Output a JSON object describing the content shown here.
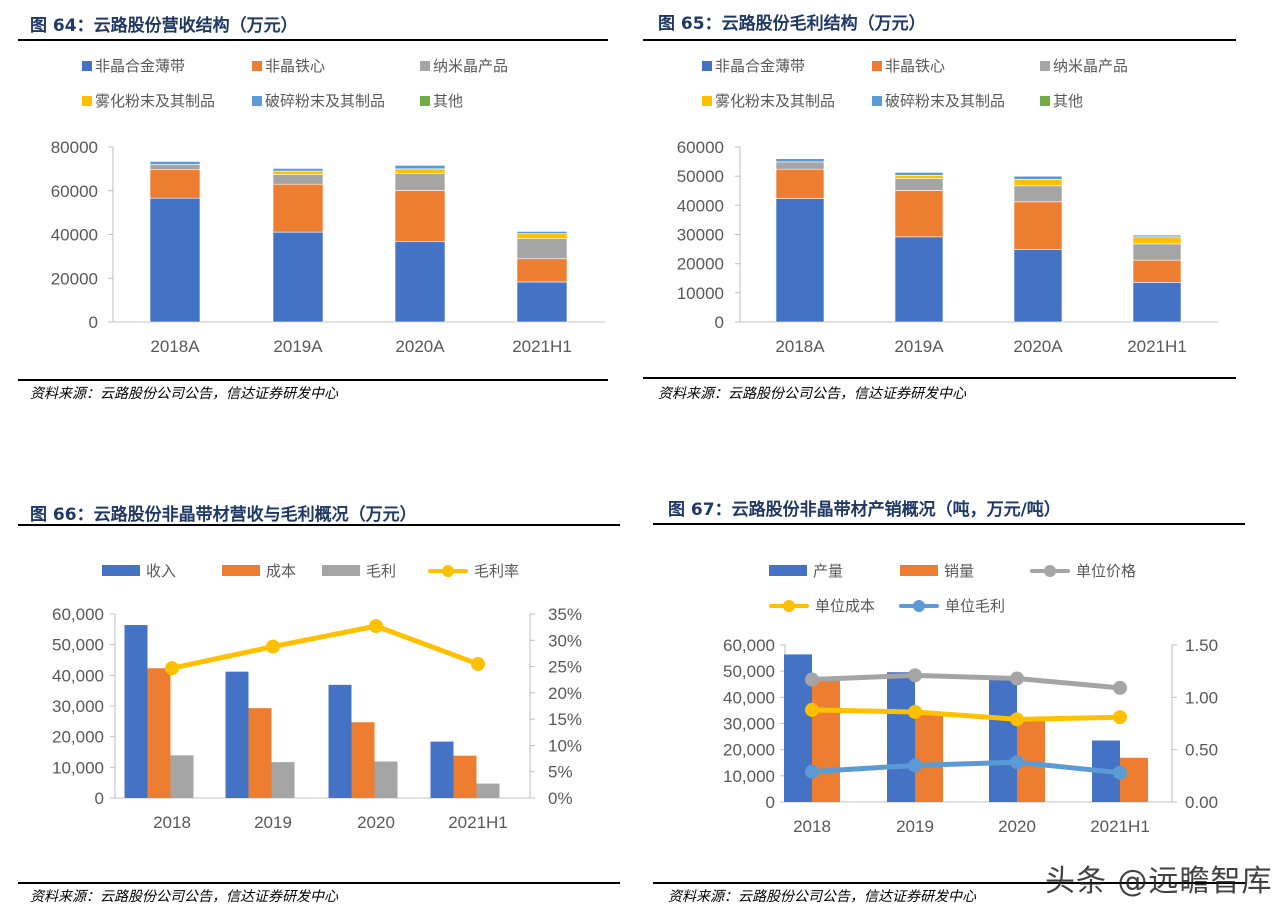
{
  "panels": [
    {
      "title": "图 64：云路股份营收结构（万元）",
      "source": "资料来源：云路股份公司公告，信达证券研发中心"
    },
    {
      "title": "图 65：云路股份毛利结构（万元）",
      "source": "资料来源：云路股份公司公告，信达证券研发中心"
    },
    {
      "title": "图 66：云路股份非晶带材营收与毛利概况（万元）",
      "source": "资料来源：云路股份公司公告，信达证券研发中心"
    },
    {
      "title": "图 67：云路股份非晶带材产销概况（吨，万元/吨）",
      "source": "资料来源：云路股份公司公告，信达证券研发中心"
    }
  ],
  "watermark": "头条 @远瞻智库",
  "chart_data": [
    {
      "type": "bar",
      "stacked": true,
      "categories": [
        "2018A",
        "2019A",
        "2020A",
        "2021H1"
      ],
      "ylim": [
        0,
        80000
      ],
      "yticks": [
        "0",
        "20000",
        "40000",
        "60000",
        "80000"
      ],
      "legend_position": "top",
      "grid": false,
      "series": [
        {
          "name": "非晶合金薄带",
          "color": "#4472c4",
          "values": [
            56600,
            41100,
            36700,
            18300
          ]
        },
        {
          "name": "非晶铁心",
          "color": "#ed7d31",
          "values": [
            13000,
            21900,
            23400,
            10600
          ]
        },
        {
          "name": "纳米晶产品",
          "color": "#a5a5a5",
          "values": [
            2400,
            4400,
            7800,
            9200
          ]
        },
        {
          "name": "雾化粉末及其制品",
          "color": "#ffc000",
          "values": [
            0,
            1600,
            2100,
            2300
          ]
        },
        {
          "name": "破碎粉末及其制品",
          "color": "#5b9bd5",
          "values": [
            1400,
            1200,
            1600,
            1000
          ]
        },
        {
          "name": "其他",
          "color": "#70ad47",
          "values": [
            0,
            0,
            0,
            0
          ]
        }
      ]
    },
    {
      "type": "bar",
      "stacked": true,
      "categories": [
        "2018A",
        "2019A",
        "2020A",
        "2021H1"
      ],
      "ylim": [
        0,
        60000
      ],
      "yticks": [
        "0",
        "10000",
        "20000",
        "30000",
        "40000",
        "50000",
        "60000"
      ],
      "legend_position": "top",
      "grid": false,
      "series": [
        {
          "name": "非晶合金薄带",
          "color": "#4472c4",
          "values": [
            42300,
            29200,
            24900,
            13600
          ]
        },
        {
          "name": "非晶铁心",
          "color": "#ed7d31",
          "values": [
            10100,
            15900,
            16300,
            7600
          ]
        },
        {
          "name": "纳米晶产品",
          "color": "#a5a5a5",
          "values": [
            2500,
            4100,
            5500,
            5600
          ]
        },
        {
          "name": "雾化粉末及其制品",
          "color": "#ffc000",
          "values": [
            0,
            1100,
            2200,
            2400
          ]
        },
        {
          "name": "破碎粉末及其制品",
          "color": "#5b9bd5",
          "values": [
            1100,
            1000,
            1100,
            600
          ]
        },
        {
          "name": "其他",
          "color": "#70ad47",
          "values": [
            0,
            0,
            0,
            0
          ]
        }
      ]
    },
    {
      "type": "bar+line",
      "categories": [
        "2018",
        "2019",
        "2020",
        "2021H1"
      ],
      "ylim": [
        0,
        60000
      ],
      "yticks": [
        "0",
        "10,000",
        "20,000",
        "30,000",
        "40,000",
        "50,000",
        "60,000"
      ],
      "y2lim": [
        0,
        0.35
      ],
      "y2ticks": [
        "0%",
        "5%",
        "10%",
        "15%",
        "20%",
        "25%",
        "30%",
        "35%"
      ],
      "legend_position": "top",
      "grid": false,
      "series": [
        {
          "name": "收入",
          "kind": "bar",
          "color": "#4472c4",
          "values": [
            56400,
            41200,
            36900,
            18400
          ]
        },
        {
          "name": "成本",
          "kind": "bar",
          "color": "#ed7d31",
          "values": [
            42300,
            29300,
            24700,
            13800
          ]
        },
        {
          "name": "毛利",
          "kind": "bar",
          "color": "#a5a5a5",
          "values": [
            13900,
            11700,
            11900,
            4700
          ]
        },
        {
          "name": "毛利率",
          "kind": "line",
          "axis": "right",
          "color": "#ffc000",
          "values": [
            0.247,
            0.288,
            0.327,
            0.255
          ]
        }
      ]
    },
    {
      "type": "bar+line",
      "categories": [
        "2018",
        "2019",
        "2020",
        "2021H1"
      ],
      "ylim": [
        0,
        60000
      ],
      "yticks": [
        "0",
        "10,000",
        "20,000",
        "30,000",
        "40,000",
        "50,000",
        "60,000"
      ],
      "y2lim": [
        0,
        1.5
      ],
      "y2ticks": [
        "0.00",
        "0.50",
        "1.00",
        "1.50"
      ],
      "legend_position": "top",
      "grid": false,
      "series": [
        {
          "name": "产量",
          "kind": "bar",
          "color": "#4472c4",
          "values": [
            56400,
            49600,
            47300,
            23500
          ]
        },
        {
          "name": "销量",
          "kind": "bar",
          "color": "#ed7d31",
          "values": [
            47900,
            33900,
            31400,
            16900
          ]
        },
        {
          "name": "单位价格",
          "kind": "line",
          "axis": "right",
          "color": "#a5a5a5",
          "values": [
            1.17,
            1.21,
            1.18,
            1.09
          ]
        },
        {
          "name": "单位成本",
          "kind": "line",
          "axis": "right",
          "color": "#ffc000",
          "values": [
            0.88,
            0.86,
            0.79,
            0.81
          ]
        },
        {
          "name": "单位毛利",
          "kind": "line",
          "axis": "right",
          "color": "#5b9bd5",
          "values": [
            0.29,
            0.35,
            0.38,
            0.28
          ]
        }
      ]
    }
  ]
}
